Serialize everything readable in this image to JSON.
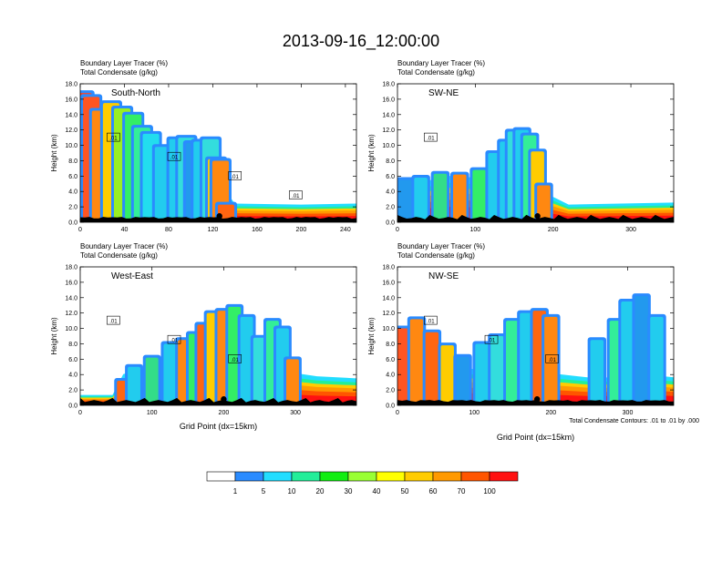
{
  "figure": {
    "title": "2013-09-16_12:00:00",
    "footnote": "Total Condensate Contours: .01 to .01 by .000"
  },
  "chart_data": [
    {
      "type": "heatmap",
      "title": "South-North",
      "field_labels": [
        "Boundary Layer Tracer    (%)",
        "Total Condensate    (g/kg)"
      ],
      "ylabel": "Height (km)",
      "xlabel": "",
      "xlim": [
        0,
        250
      ],
      "ylim": [
        0,
        18
      ],
      "xticks": [
        "0",
        "40",
        "80",
        "120",
        "160",
        "200",
        "240"
      ],
      "yticks": [
        "0.0",
        "2.0",
        "4.0",
        "6.0",
        "8.0",
        "10.0",
        "12.0",
        "14.0",
        "16.0",
        "18.0"
      ],
      "marker_x": 126,
      "contour_labels": [
        ".01",
        ".01",
        ".01",
        ".01"
      ],
      "columns": [
        {
          "x": 3,
          "top": 16.8,
          "tint": "#ff4422"
        },
        {
          "x": 10,
          "top": 16.3,
          "tint": "#ff5522"
        },
        {
          "x": 18,
          "top": 14.5,
          "tint": "#ff8811"
        },
        {
          "x": 28,
          "top": 15.5,
          "tint": "#ffcc00"
        },
        {
          "x": 38,
          "top": 14.8,
          "tint": "#99ee22"
        },
        {
          "x": 48,
          "top": 14.0,
          "tint": "#33ee66"
        },
        {
          "x": 56,
          "top": 12.3,
          "tint": "#33ee99"
        },
        {
          "x": 64,
          "top": 11.5,
          "tint": "#22ddee"
        },
        {
          "x": 75,
          "top": 9.8,
          "tint": "#22ccee"
        },
        {
          "x": 88,
          "top": 10.8,
          "tint": "#22ccee"
        },
        {
          "x": 96,
          "top": 11.0,
          "tint": "#33dddd"
        },
        {
          "x": 103,
          "top": 10.3,
          "tint": "#2299ee"
        },
        {
          "x": 110,
          "top": 10.5,
          "tint": "#22ccee"
        },
        {
          "x": 118,
          "top": 10.8,
          "tint": "#33dddd"
        },
        {
          "x": 123,
          "top": 8.2,
          "tint": "#ffcc00"
        },
        {
          "x": 127,
          "top": 8.0,
          "tint": "#ff8811"
        },
        {
          "x": 132,
          "top": 2.3,
          "tint": "#ff6611"
        }
      ],
      "boundary_layer": [
        [
          0,
          3.0
        ],
        [
          40,
          3.2
        ],
        [
          80,
          3.0
        ],
        [
          100,
          4.0
        ],
        [
          120,
          4.2
        ],
        [
          128,
          3.5
        ],
        [
          140,
          1.8
        ],
        [
          200,
          1.7
        ],
        [
          250,
          1.8
        ]
      ]
    },
    {
      "type": "heatmap",
      "title": "SW-NE",
      "field_labels": [
        "Boundary Layer Tracer    (%)",
        "Total Condensate    (g/kg)"
      ],
      "ylabel": "Height (km)",
      "xlabel": "",
      "xlim": [
        0,
        355
      ],
      "ylim": [
        0,
        18
      ],
      "xticks": [
        "0",
        "100",
        "200",
        "300"
      ],
      "yticks": [
        "0.0",
        "2.0",
        "4.0",
        "6.0",
        "8.0",
        "10.0",
        "12.0",
        "14.0",
        "16.0",
        "18.0"
      ],
      "marker_x": 180,
      "contour_labels": [
        ".01"
      ],
      "columns": [
        {
          "x": 10,
          "top": 5.5,
          "tint": "#2299ee"
        },
        {
          "x": 30,
          "top": 5.8,
          "tint": "#22ccee"
        },
        {
          "x": 55,
          "top": 6.3,
          "tint": "#33dd88"
        },
        {
          "x": 80,
          "top": 6.2,
          "tint": "#ff8811"
        },
        {
          "x": 105,
          "top": 6.8,
          "tint": "#33ee66"
        },
        {
          "x": 125,
          "top": 9.0,
          "tint": "#22ccee"
        },
        {
          "x": 140,
          "top": 10.5,
          "tint": "#22ccee"
        },
        {
          "x": 150,
          "top": 11.8,
          "tint": "#33dddd"
        },
        {
          "x": 160,
          "top": 12.0,
          "tint": "#22ccee"
        },
        {
          "x": 170,
          "top": 11.3,
          "tint": "#33ee99"
        },
        {
          "x": 180,
          "top": 9.2,
          "tint": "#ffcc00"
        },
        {
          "x": 188,
          "top": 4.8,
          "tint": "#ff8811"
        }
      ],
      "boundary_layer": [
        [
          0,
          3.0
        ],
        [
          60,
          4.5
        ],
        [
          120,
          4.2
        ],
        [
          160,
          3.8
        ],
        [
          185,
          3.0
        ],
        [
          220,
          1.7
        ],
        [
          355,
          1.9
        ]
      ]
    },
    {
      "type": "heatmap",
      "title": "West-East",
      "field_labels": [
        "Boundary Layer Tracer    (%)",
        "Total Condensate    (g/kg)"
      ],
      "ylabel": "Height (km)",
      "xlabel": "Grid Point (dx=15km)",
      "xlim": [
        0,
        385
      ],
      "ylim": [
        0,
        18
      ],
      "xticks": [
        "0",
        "100",
        "200",
        "300"
      ],
      "yticks": [
        "0.0",
        "2.0",
        "4.0",
        "6.0",
        "8.0",
        "10.0",
        "12.0",
        "14.0",
        "16.0",
        "18.0"
      ],
      "marker_x": 200,
      "contour_labels": [
        ".01",
        ".01",
        ".01"
      ],
      "columns": [
        {
          "x": 60,
          "top": 3.2,
          "tint": "#ff6611"
        },
        {
          "x": 75,
          "top": 5.0,
          "tint": "#22ccee"
        },
        {
          "x": 100,
          "top": 6.2,
          "tint": "#33dd88"
        },
        {
          "x": 125,
          "top": 8.0,
          "tint": "#22ccee"
        },
        {
          "x": 145,
          "top": 8.5,
          "tint": "#ff8811"
        },
        {
          "x": 160,
          "top": 9.3,
          "tint": "#33ee66"
        },
        {
          "x": 172,
          "top": 10.5,
          "tint": "#ff6611"
        },
        {
          "x": 185,
          "top": 12.0,
          "tint": "#ffcc00"
        },
        {
          "x": 200,
          "top": 12.3,
          "tint": "#ff8811"
        },
        {
          "x": 215,
          "top": 12.8,
          "tint": "#33ee66"
        },
        {
          "x": 232,
          "top": 11.5,
          "tint": "#22ccee"
        },
        {
          "x": 250,
          "top": 8.8,
          "tint": "#33dddd"
        },
        {
          "x": 268,
          "top": 11.0,
          "tint": "#33ee99"
        },
        {
          "x": 282,
          "top": 10.0,
          "tint": "#22ccee"
        },
        {
          "x": 296,
          "top": 6.0,
          "tint": "#ff8811"
        }
      ],
      "boundary_layer": [
        [
          0,
          1.0
        ],
        [
          45,
          1.0
        ],
        [
          60,
          3.0
        ],
        [
          120,
          4.2
        ],
        [
          180,
          4.8
        ],
        [
          240,
          4.5
        ],
        [
          290,
          3.2
        ],
        [
          330,
          2.8
        ],
        [
          385,
          2.6
        ]
      ]
    },
    {
      "type": "heatmap",
      "title": "NW-SE",
      "field_labels": [
        "Boundary Layer Tracer    (%)",
        "Total Condensate    (g/kg)"
      ],
      "ylabel": "Height (km)",
      "xlabel": "Grid Point (dx=15km)",
      "xlim": [
        0,
        360
      ],
      "ylim": [
        0,
        18
      ],
      "xticks": [
        "0",
        "100",
        "200",
        "300"
      ],
      "yticks": [
        "0.0",
        "2.0",
        "4.0",
        "6.0",
        "8.0",
        "10.0",
        "12.0",
        "14.0",
        "16.0",
        "18.0"
      ],
      "marker_x": 182,
      "contour_labels": [
        ".01",
        ".01",
        ".01"
      ],
      "columns": [
        {
          "x": 8,
          "top": 10.0,
          "tint": "#ff5522"
        },
        {
          "x": 25,
          "top": 11.2,
          "tint": "#ff8811"
        },
        {
          "x": 45,
          "top": 9.5,
          "tint": "#ff6611"
        },
        {
          "x": 65,
          "top": 7.8,
          "tint": "#ffcc00"
        },
        {
          "x": 85,
          "top": 6.3,
          "tint": "#2299ee"
        },
        {
          "x": 110,
          "top": 8.0,
          "tint": "#22ccee"
        },
        {
          "x": 130,
          "top": 9.0,
          "tint": "#33dddd"
        },
        {
          "x": 150,
          "top": 11.0,
          "tint": "#33ee99"
        },
        {
          "x": 168,
          "top": 12.0,
          "tint": "#22ccee"
        },
        {
          "x": 185,
          "top": 12.3,
          "tint": "#ff6611"
        },
        {
          "x": 200,
          "top": 11.5,
          "tint": "#ff8811"
        },
        {
          "x": 260,
          "top": 8.5,
          "tint": "#22ccee"
        },
        {
          "x": 285,
          "top": 11.0,
          "tint": "#33ee99"
        },
        {
          "x": 300,
          "top": 13.5,
          "tint": "#22ccee"
        },
        {
          "x": 318,
          "top": 14.2,
          "tint": "#2299ee"
        },
        {
          "x": 338,
          "top": 11.5,
          "tint": "#22ccee"
        }
      ],
      "boundary_layer": [
        [
          0,
          3.5
        ],
        [
          60,
          4.0
        ],
        [
          120,
          3.2
        ],
        [
          170,
          3.8
        ],
        [
          210,
          3.0
        ],
        [
          260,
          2.6
        ],
        [
          320,
          3.0
        ],
        [
          360,
          2.7
        ]
      ]
    }
  ],
  "colorbar": {
    "labels": [
      "1",
      "5",
      "10",
      "20",
      "30",
      "40",
      "50",
      "60",
      "70",
      "100"
    ],
    "colors": [
      "#ffffff",
      "#2a8bff",
      "#22ddff",
      "#22ee99",
      "#11ee11",
      "#99ff33",
      "#ffff00",
      "#ffcc00",
      "#ff9900",
      "#ff5500",
      "#ff1111"
    ]
  }
}
